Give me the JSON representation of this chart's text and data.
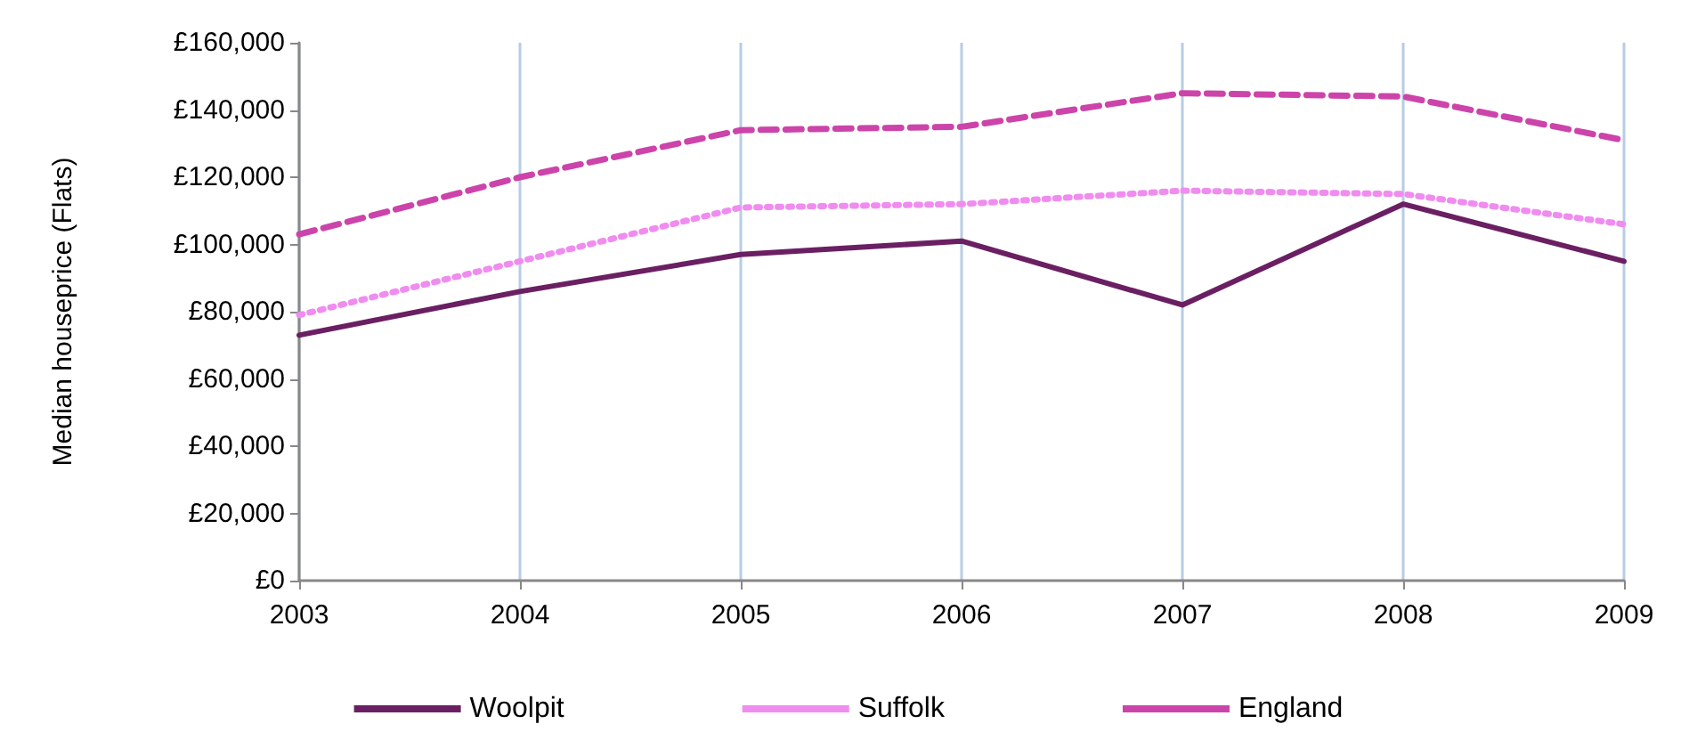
{
  "chart_data": {
    "type": "line",
    "ylabel": "Median houseprice (Flats)",
    "x": [
      2003,
      2004,
      2005,
      2006,
      2007,
      2008,
      2009
    ],
    "series": [
      {
        "name": "Woolpit",
        "color": "#6b1f63",
        "line_style": "solid",
        "values": [
          73000,
          86000,
          97000,
          101000,
          82000,
          112000,
          95000
        ]
      },
      {
        "name": "Suffolk",
        "color": "#f08cf0",
        "line_style": "dotted",
        "values": [
          79000,
          95000,
          111000,
          112000,
          116000,
          115000,
          106000
        ]
      },
      {
        "name": "England",
        "color": "#cc44aa",
        "line_style": "dashed",
        "values": [
          103000,
          120000,
          134000,
          135000,
          145000,
          144000,
          131000
        ]
      }
    ],
    "xlim": [
      2003,
      2009
    ],
    "xticks": [
      2003,
      2004,
      2005,
      2006,
      2007,
      2008,
      2009
    ],
    "ylim": [
      0,
      160000
    ],
    "yticks": [
      {
        "value": 0,
        "label": "£0"
      },
      {
        "value": 20000,
        "label": "£20,000"
      },
      {
        "value": 40000,
        "label": "£40,000"
      },
      {
        "value": 60000,
        "label": "£60,000"
      },
      {
        "value": 80000,
        "label": "£80,000"
      },
      {
        "value": 100000,
        "label": "£100,000"
      },
      {
        "value": 120000,
        "label": "£120,000"
      },
      {
        "value": 140000,
        "label": "£140,000"
      },
      {
        "value": 160000,
        "label": "£160,000"
      }
    ],
    "grid": "x",
    "legend": "bottom",
    "marker": "none"
  }
}
